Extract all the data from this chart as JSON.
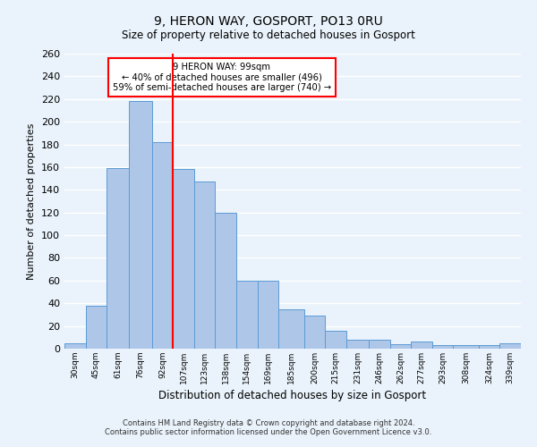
{
  "title": "9, HERON WAY, GOSPORT, PO13 0RU",
  "subtitle": "Size of property relative to detached houses in Gosport",
  "xlabel": "Distribution of detached houses by size in Gosport",
  "ylabel": "Number of detached properties",
  "categories": [
    "30sqm",
    "45sqm",
    "61sqm",
    "76sqm",
    "92sqm",
    "107sqm",
    "123sqm",
    "138sqm",
    "154sqm",
    "169sqm",
    "185sqm",
    "200sqm",
    "215sqm",
    "231sqm",
    "246sqm",
    "262sqm",
    "277sqm",
    "293sqm",
    "308sqm",
    "324sqm",
    "339sqm"
  ],
  "bin_edges": [
    22.5,
    37.5,
    52.5,
    68.5,
    84.5,
    99.5,
    114.5,
    129.5,
    144.5,
    159.5,
    174.5,
    192.5,
    207.5,
    222.5,
    238.5,
    253.5,
    268.5,
    283.5,
    298.5,
    316.5,
    331.5,
    346.5
  ],
  "values": [
    5,
    38,
    159,
    218,
    182,
    158,
    147,
    120,
    60,
    60,
    35,
    29,
    16,
    8,
    8,
    4,
    6,
    3,
    3,
    3,
    5
  ],
  "bar_color": "#aec6e8",
  "bar_edge_color": "#5b9bd5",
  "vline_x": 99.5,
  "vline_color": "red",
  "annotation_title": "9 HERON WAY: 99sqm",
  "annotation_line1": "← 40% of detached houses are smaller (496)",
  "annotation_line2": "59% of semi-detached houses are larger (740) →",
  "annotation_box_color": "white",
  "annotation_box_edge": "red",
  "footer1": "Contains HM Land Registry data © Crown copyright and database right 2024.",
  "footer2": "Contains public sector information licensed under the Open Government Licence v3.0.",
  "ylim": [
    0,
    260
  ],
  "yticks": [
    0,
    20,
    40,
    60,
    80,
    100,
    120,
    140,
    160,
    180,
    200,
    220,
    240,
    260
  ],
  "bg_color": "#eaf3fb",
  "plot_bg_color": "#eaf3fb"
}
